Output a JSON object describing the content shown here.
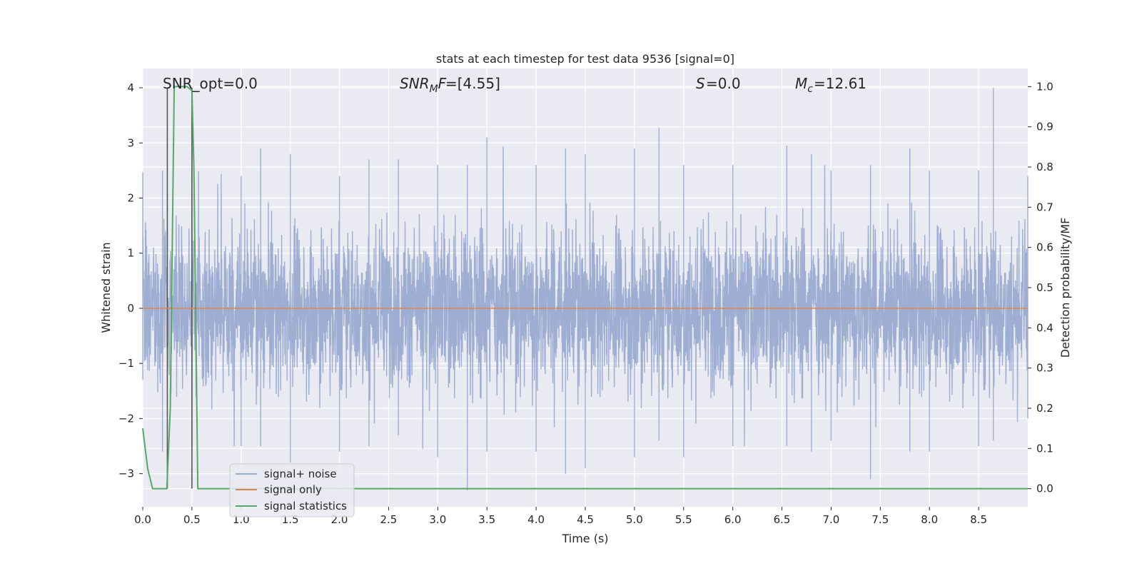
{
  "chart_data": {
    "type": "line",
    "title": "stats at each timestep for test data 9536 [signal=0]",
    "xlabel": "Time (s)",
    "ylabel_left": "Whitened strain",
    "ylabel_right": "Detection probability/MF",
    "xlim": [
      0,
      9.0
    ],
    "ylim_left": [
      -3.6,
      4.35
    ],
    "ylim_right": [
      -0.045,
      1.045
    ],
    "x_ticks": [
      "0.0",
      "0.5",
      "1.0",
      "1.5",
      "2.0",
      "2.5",
      "3.0",
      "3.5",
      "4.0",
      "4.5",
      "5.0",
      "5.5",
      "6.0",
      "6.5",
      "7.0",
      "7.5",
      "8.0",
      "8.5"
    ],
    "y_ticks_left": [
      "4",
      "3",
      "2",
      "1",
      "0",
      "−1",
      "−2",
      "−3"
    ],
    "y_ticks_right": [
      "1.0",
      "0.9",
      "0.8",
      "0.7",
      "0.6",
      "0.5",
      "0.4",
      "0.3",
      "0.2",
      "0.1",
      "0.0"
    ],
    "grid": true,
    "legend_position": "lower-left",
    "annotations": {
      "snr_opt": "SNR_opt=0.0",
      "snr_mf": "=[4.55]",
      "s_label": "=0.0",
      "mc_label": "=12.61"
    },
    "series": [
      {
        "name": "signal+ noise",
        "axis": "left",
        "color": "#9aabd0",
        "description_values": "noise samples with amplitude mostly within ±2, spikes up to 4.0",
        "envelope_points": [
          [
            0.0,
            2.47,
            -1.3
          ],
          [
            0.2,
            2.5,
            -2.6
          ],
          [
            0.5,
            2.5,
            -2.5
          ],
          [
            1.0,
            2.4,
            -2.5
          ],
          [
            1.2,
            2.9,
            -2.5
          ],
          [
            1.5,
            2.8,
            -2.8
          ],
          [
            2.0,
            2.4,
            -2.6
          ],
          [
            2.3,
            2.7,
            -2.5
          ],
          [
            2.6,
            2.7,
            -2.3
          ],
          [
            3.0,
            2.6,
            -2.7
          ],
          [
            3.3,
            2.6,
            -3.3
          ],
          [
            3.5,
            3.1,
            -2.6
          ],
          [
            4.0,
            2.6,
            -2.6
          ],
          [
            4.3,
            2.9,
            -3.0
          ],
          [
            4.5,
            2.8,
            -2.9
          ],
          [
            5.0,
            2.9,
            -2.7
          ],
          [
            5.25,
            3.27,
            -2.4
          ],
          [
            5.5,
            2.6,
            -2.7
          ],
          [
            6.0,
            2.6,
            -2.5
          ],
          [
            6.55,
            2.95,
            -2.5
          ],
          [
            6.8,
            2.8,
            -2.6
          ],
          [
            7.0,
            2.5,
            -2.4
          ],
          [
            7.4,
            2.6,
            -3.1
          ],
          [
            7.8,
            2.9,
            -2.6
          ],
          [
            8.0,
            2.5,
            -2.6
          ],
          [
            8.5,
            2.5,
            -2.5
          ],
          [
            8.65,
            4.0,
            -2.4
          ],
          [
            9.0,
            2.4,
            -2.0
          ]
        ]
      },
      {
        "name": "signal only",
        "axis": "left",
        "color": "#dd8452",
        "x": [
          0.0,
          9.0
        ],
        "y": [
          0.0,
          0.0
        ]
      },
      {
        "name": "signal statistics",
        "axis": "right",
        "color": "#55a868",
        "x": [
          0.0,
          0.05,
          0.1,
          0.15,
          0.2,
          0.245,
          0.28,
          0.32,
          0.4,
          0.45,
          0.5,
          0.52,
          0.56,
          0.6,
          9.0
        ],
        "y": [
          0.15,
          0.05,
          0.0,
          0.0,
          0.0,
          0.0,
          0.2,
          1.0,
          1.0,
          1.0,
          0.99,
          0.8,
          0.0,
          0.0,
          0.0
        ]
      }
    ],
    "vertical_markers": [
      0.25,
      0.5
    ],
    "vertical_marker_color": "#555555"
  }
}
